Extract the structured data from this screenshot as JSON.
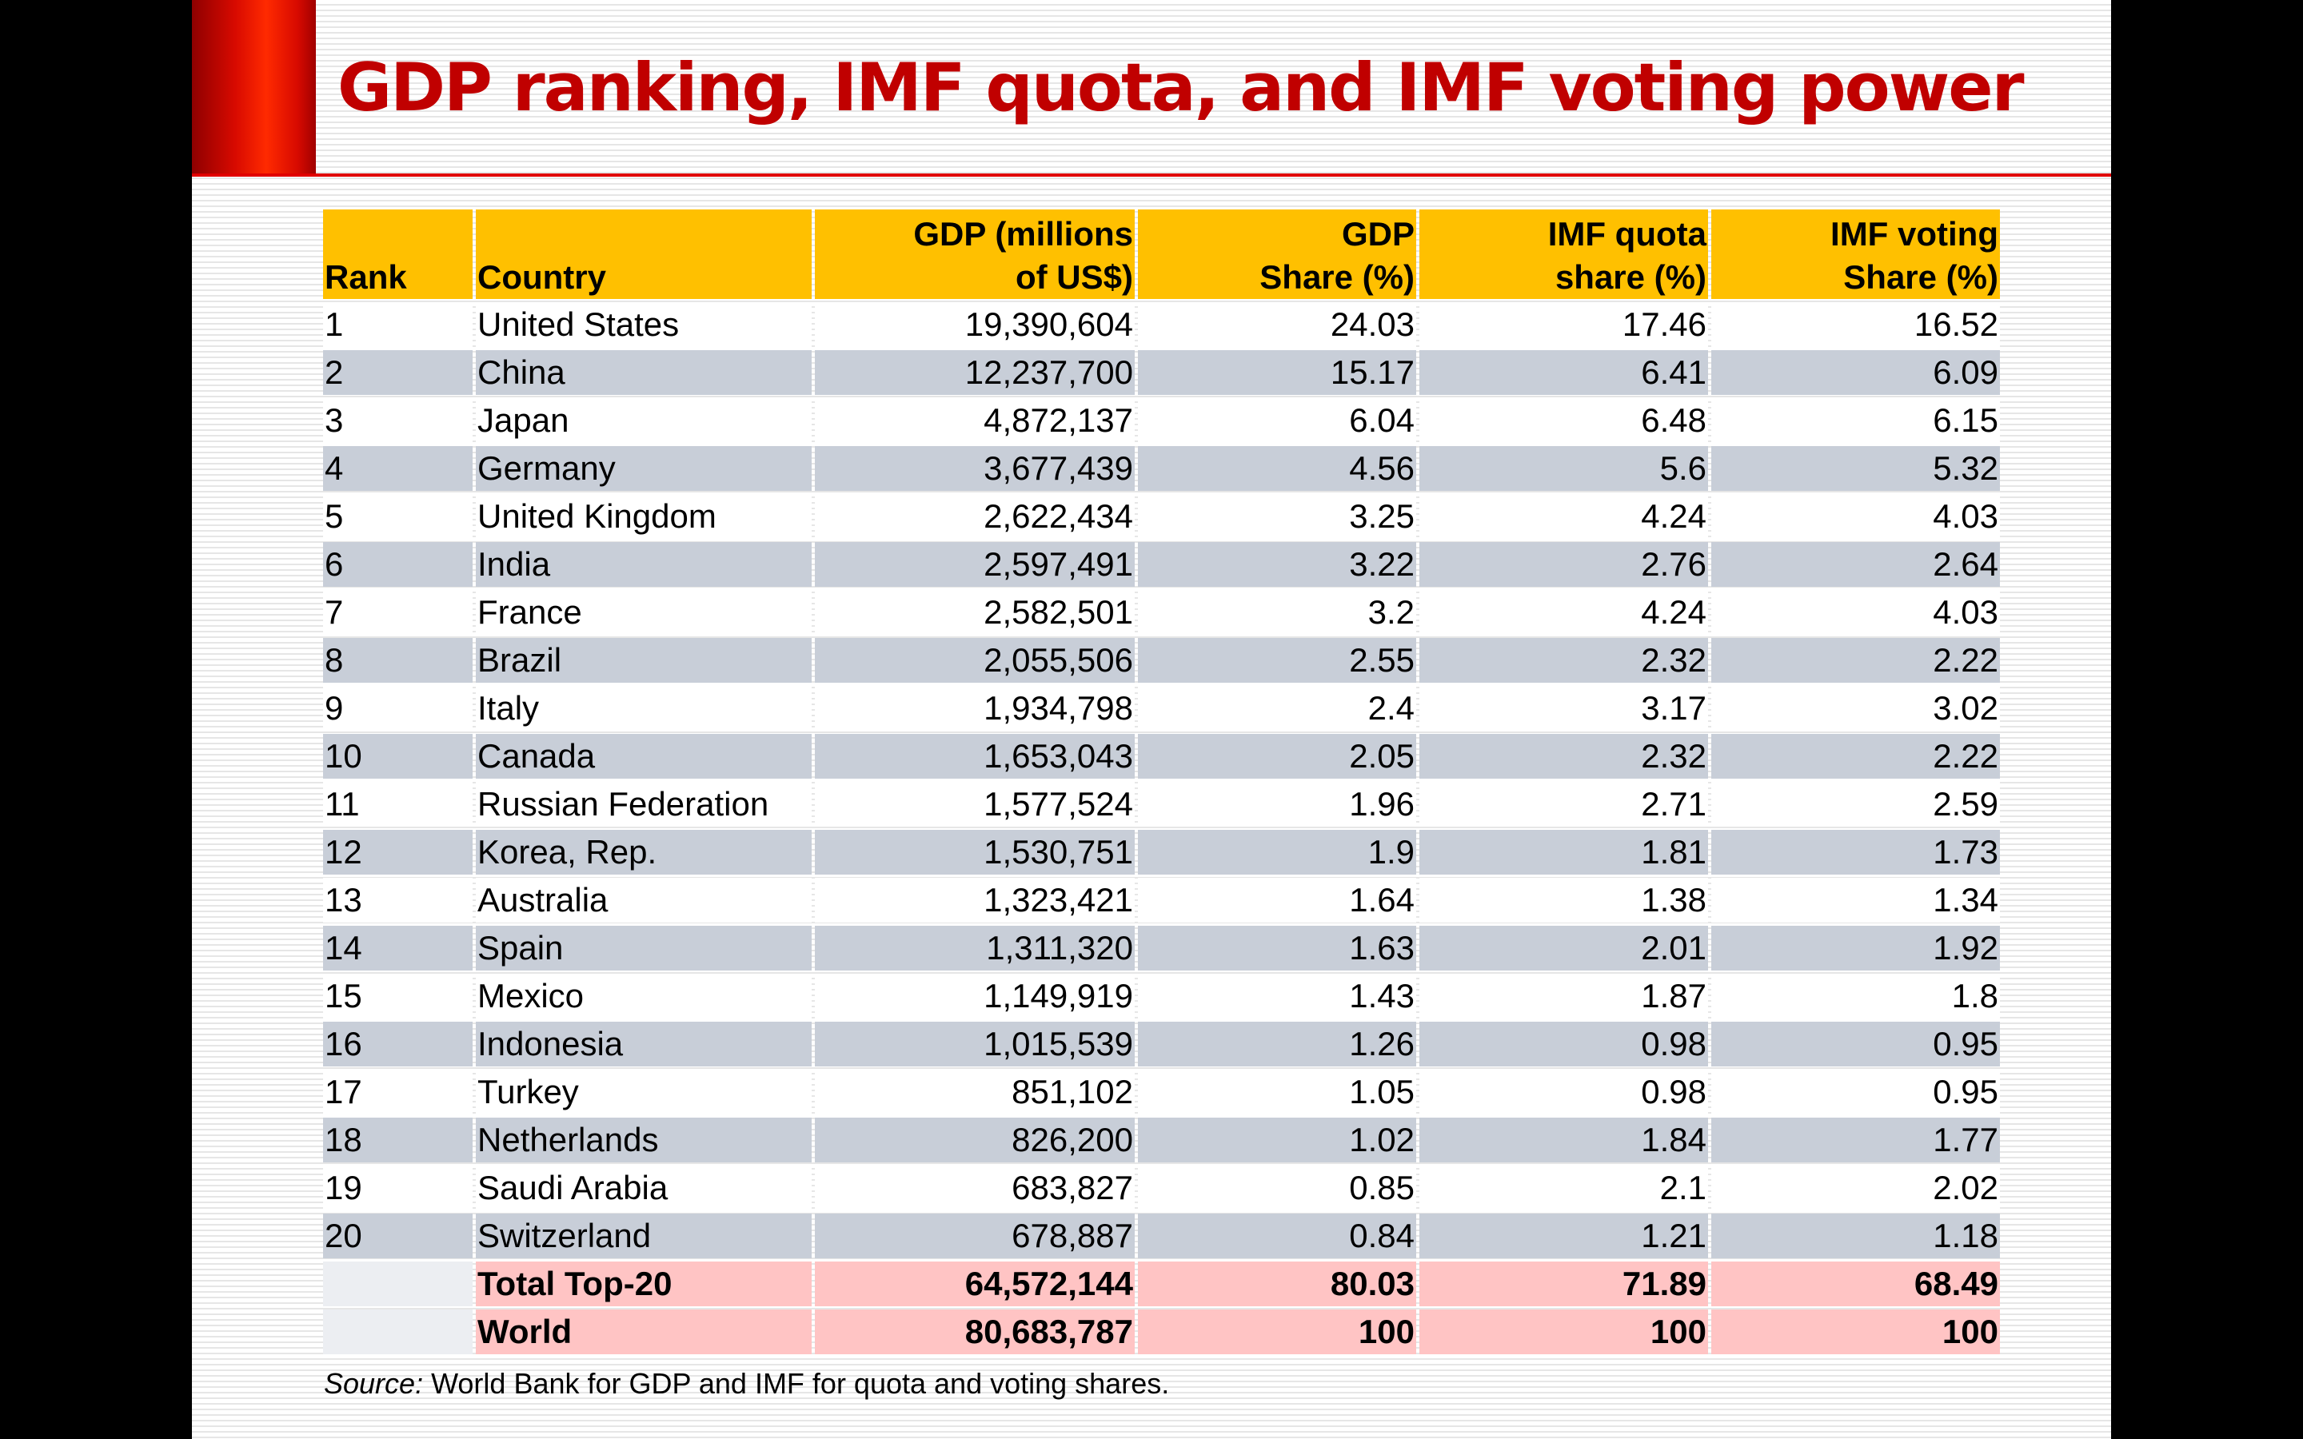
{
  "title": "GDP ranking, IMF quota, and IMF voting power",
  "table": {
    "headers": [
      {
        "line1": "",
        "line2": "Rank"
      },
      {
        "line1": "",
        "line2": "Country"
      },
      {
        "line1": "GDP (millions",
        "line2": "of US$)"
      },
      {
        "line1": "GDP",
        "line2": "Share (%)"
      },
      {
        "line1": "IMF quota",
        "line2": "share (%)"
      },
      {
        "line1": "IMF voting",
        "line2": "Share (%)"
      }
    ],
    "rows": [
      [
        "1",
        "United States",
        "19,390,604",
        "24.03",
        "17.46",
        "16.52"
      ],
      [
        "2",
        "China",
        "12,237,700",
        "15.17",
        "6.41",
        "6.09"
      ],
      [
        "3",
        "Japan",
        "4,872,137",
        "6.04",
        "6.48",
        "6.15"
      ],
      [
        "4",
        "Germany",
        "3,677,439",
        "4.56",
        "5.6",
        "5.32"
      ],
      [
        "5",
        "United Kingdom",
        "2,622,434",
        "3.25",
        "4.24",
        "4.03"
      ],
      [
        "6",
        "India",
        "2,597,491",
        "3.22",
        "2.76",
        "2.64"
      ],
      [
        "7",
        "France",
        "2,582,501",
        "3.2",
        "4.24",
        "4.03"
      ],
      [
        "8",
        "Brazil",
        "2,055,506",
        "2.55",
        "2.32",
        "2.22"
      ],
      [
        "9",
        "Italy",
        "1,934,798",
        "2.4",
        "3.17",
        "3.02"
      ],
      [
        "10",
        "Canada",
        "1,653,043",
        "2.05",
        "2.32",
        "2.22"
      ],
      [
        "11",
        "Russian Federation",
        "1,577,524",
        "1.96",
        "2.71",
        "2.59"
      ],
      [
        "12",
        "Korea, Rep.",
        "1,530,751",
        "1.9",
        "1.81",
        "1.73"
      ],
      [
        "13",
        "Australia",
        "1,323,421",
        "1.64",
        "1.38",
        "1.34"
      ],
      [
        "14",
        "Spain",
        "1,311,320",
        "1.63",
        "2.01",
        "1.92"
      ],
      [
        "15",
        "Mexico",
        "1,149,919",
        "1.43",
        "1.87",
        "1.8"
      ],
      [
        "16",
        "Indonesia",
        "1,015,539",
        "1.26",
        "0.98",
        "0.95"
      ],
      [
        "17",
        "Turkey",
        "851,102",
        "1.05",
        "0.98",
        "0.95"
      ],
      [
        "18",
        "Netherlands",
        "826,200",
        "1.02",
        "1.84",
        "1.77"
      ],
      [
        "19",
        "Saudi Arabia",
        "683,827",
        "0.85",
        "2.1",
        "2.02"
      ],
      [
        "20",
        "Switzerland",
        "678,887",
        "0.84",
        "1.21",
        "1.18"
      ]
    ],
    "totals": [
      [
        "",
        "Total Top-20",
        "64,572,144",
        "80.03",
        "71.89",
        "68.49"
      ],
      [
        "",
        "World",
        "80,683,787",
        "100",
        "100",
        "100"
      ]
    ]
  },
  "source": {
    "label": "Source:",
    "text": " World Bank for GDP and IMF for quota and voting shares."
  }
}
